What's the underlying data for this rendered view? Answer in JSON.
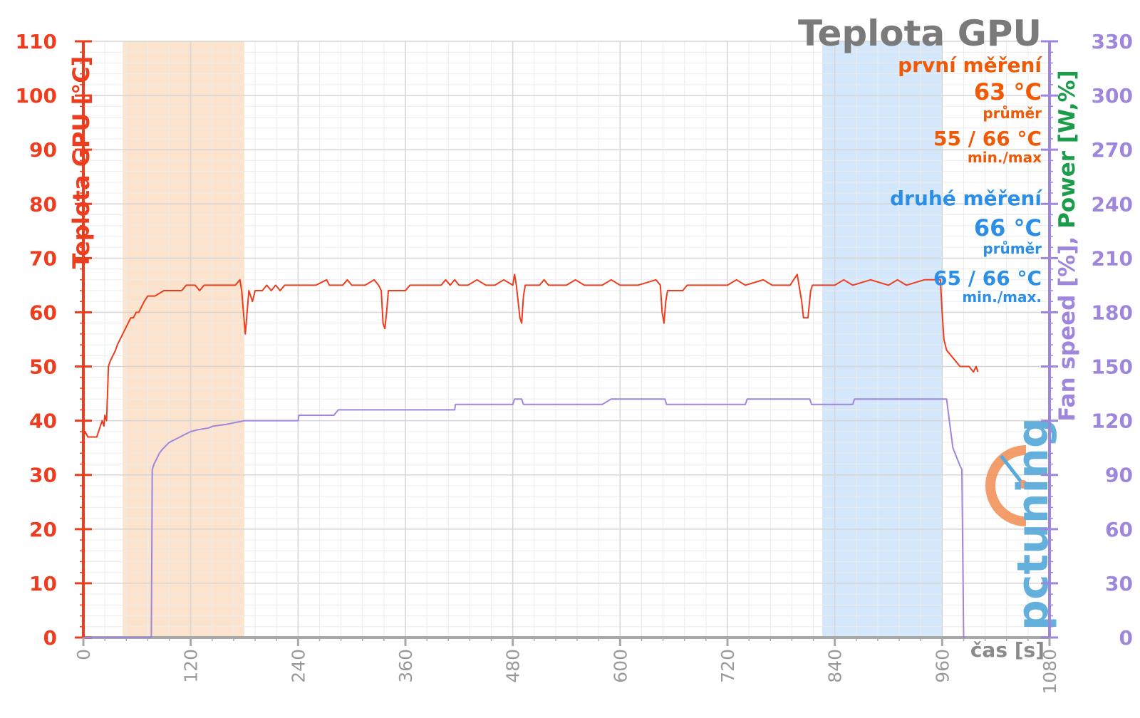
{
  "chart_data": {
    "type": "line",
    "title": "Teplota GPU",
    "xlabel": "čas [s]",
    "ylabel": "Teplota GPU [°C]",
    "ylabel_right_parts": [
      "Fan speed [%]",
      ", ",
      "Power [W,%]"
    ],
    "xlim": [
      0,
      1080
    ],
    "ylim": [
      0,
      110
    ],
    "ylim_right": [
      0,
      330
    ],
    "x_ticks": [
      0,
      120,
      240,
      360,
      480,
      600,
      720,
      840,
      960,
      1080
    ],
    "y_ticks": [
      0,
      10,
      20,
      30,
      40,
      50,
      60,
      70,
      80,
      90,
      100,
      110
    ],
    "y_right_ticks": [
      0,
      30,
      60,
      90,
      120,
      150,
      180,
      210,
      240,
      270,
      300,
      330
    ],
    "grid": true,
    "bands": [
      {
        "x0": 44,
        "x1": 180,
        "color": "#fbe3cd"
      },
      {
        "x0": 826,
        "x1": 960,
        "color": "#d4e7fb"
      }
    ],
    "series": [
      {
        "axis": "left",
        "color": "#ee3d1e",
        "points": [
          [
            0,
            37
          ],
          [
            2,
            38
          ],
          [
            5,
            37
          ],
          [
            15,
            37
          ],
          [
            17,
            38
          ],
          [
            19,
            39
          ],
          [
            21,
            40
          ],
          [
            23,
            39
          ],
          [
            24,
            41
          ],
          [
            26,
            40
          ],
          [
            27,
            45
          ],
          [
            28,
            50
          ],
          [
            30,
            51
          ],
          [
            33,
            52
          ],
          [
            36,
            53
          ],
          [
            38,
            54
          ],
          [
            41,
            55
          ],
          [
            44,
            56
          ],
          [
            47,
            57
          ],
          [
            50,
            58
          ],
          [
            53,
            59
          ],
          [
            56,
            59
          ],
          [
            59,
            60
          ],
          [
            62,
            60
          ],
          [
            65,
            61
          ],
          [
            68,
            62
          ],
          [
            72,
            63
          ],
          [
            80,
            63
          ],
          [
            90,
            64
          ],
          [
            100,
            64
          ],
          [
            110,
            64
          ],
          [
            115,
            65
          ],
          [
            125,
            65
          ],
          [
            130,
            64
          ],
          [
            135,
            65
          ],
          [
            145,
            65
          ],
          [
            160,
            65
          ],
          [
            170,
            65
          ],
          [
            175,
            66
          ],
          [
            177,
            64
          ],
          [
            179,
            60
          ],
          [
            181,
            56
          ],
          [
            183,
            60
          ],
          [
            185,
            64
          ],
          [
            187,
            63
          ],
          [
            189,
            62
          ],
          [
            192,
            64
          ],
          [
            200,
            64
          ],
          [
            205,
            65
          ],
          [
            210,
            64
          ],
          [
            215,
            65
          ],
          [
            220,
            64
          ],
          [
            225,
            65
          ],
          [
            240,
            65
          ],
          [
            260,
            65
          ],
          [
            272,
            66
          ],
          [
            275,
            65
          ],
          [
            290,
            65
          ],
          [
            295,
            66
          ],
          [
            300,
            65
          ],
          [
            315,
            65
          ],
          [
            325,
            66
          ],
          [
            330,
            65
          ],
          [
            333,
            64
          ],
          [
            335,
            58
          ],
          [
            337,
            57
          ],
          [
            339,
            60
          ],
          [
            341,
            64
          ],
          [
            345,
            64
          ],
          [
            360,
            64
          ],
          [
            365,
            65
          ],
          [
            380,
            65
          ],
          [
            400,
            65
          ],
          [
            405,
            66
          ],
          [
            410,
            65
          ],
          [
            415,
            66
          ],
          [
            420,
            65
          ],
          [
            430,
            65
          ],
          [
            440,
            66
          ],
          [
            450,
            65
          ],
          [
            460,
            65
          ],
          [
            470,
            66
          ],
          [
            480,
            65
          ],
          [
            482,
            67
          ],
          [
            484,
            65
          ],
          [
            486,
            62
          ],
          [
            488,
            59
          ],
          [
            490,
            58
          ],
          [
            492,
            63
          ],
          [
            494,
            65
          ],
          [
            500,
            65
          ],
          [
            510,
            65
          ],
          [
            515,
            66
          ],
          [
            520,
            65
          ],
          [
            540,
            65
          ],
          [
            550,
            66
          ],
          [
            560,
            65
          ],
          [
            580,
            65
          ],
          [
            590,
            66
          ],
          [
            600,
            65
          ],
          [
            620,
            65
          ],
          [
            640,
            66
          ],
          [
            645,
            65
          ],
          [
            647,
            60
          ],
          [
            649,
            58
          ],
          [
            651,
            62
          ],
          [
            653,
            64
          ],
          [
            660,
            64
          ],
          [
            670,
            64
          ],
          [
            675,
            65
          ],
          [
            700,
            65
          ],
          [
            720,
            65
          ],
          [
            730,
            66
          ],
          [
            740,
            65
          ],
          [
            760,
            66
          ],
          [
            770,
            65
          ],
          [
            790,
            65
          ],
          [
            798,
            67
          ],
          [
            800,
            65
          ],
          [
            803,
            62
          ],
          [
            805,
            59
          ],
          [
            810,
            59
          ],
          [
            813,
            64
          ],
          [
            815,
            65
          ],
          [
            840,
            65
          ],
          [
            850,
            66
          ],
          [
            860,
            65
          ],
          [
            880,
            66
          ],
          [
            900,
            65
          ],
          [
            910,
            66
          ],
          [
            920,
            65
          ],
          [
            940,
            66
          ],
          [
            955,
            66
          ],
          [
            958,
            66
          ],
          [
            960,
            60
          ],
          [
            962,
            55
          ],
          [
            965,
            53
          ],
          [
            970,
            52
          ],
          [
            975,
            51
          ],
          [
            980,
            50
          ],
          [
            990,
            50
          ],
          [
            995,
            49
          ],
          [
            998,
            50
          ],
          [
            1000,
            49
          ]
        ]
      },
      {
        "axis": "right",
        "color": "#9e86dd",
        "points": [
          [
            0,
            0
          ],
          [
            76,
            0
          ],
          [
            77,
            93
          ],
          [
            79,
            96
          ],
          [
            82,
            99
          ],
          [
            85,
            102
          ],
          [
            88,
            104
          ],
          [
            92,
            106
          ],
          [
            96,
            108
          ],
          [
            100,
            109
          ],
          [
            108,
            111
          ],
          [
            112,
            112
          ],
          [
            120,
            114
          ],
          [
            128,
            115
          ],
          [
            140,
            116
          ],
          [
            145,
            117
          ],
          [
            160,
            118
          ],
          [
            170,
            119
          ],
          [
            180,
            120
          ],
          [
            220,
            120
          ],
          [
            240,
            120
          ],
          [
            241,
            123
          ],
          [
            280,
            123
          ],
          [
            285,
            126
          ],
          [
            300,
            126
          ],
          [
            370,
            126
          ],
          [
            390,
            126
          ],
          [
            415,
            126
          ],
          [
            416,
            129
          ],
          [
            480,
            129
          ],
          [
            482,
            132
          ],
          [
            490,
            132
          ],
          [
            492,
            129
          ],
          [
            580,
            129
          ],
          [
            590,
            132
          ],
          [
            650,
            132
          ],
          [
            652,
            129
          ],
          [
            740,
            129
          ],
          [
            742,
            132
          ],
          [
            800,
            132
          ],
          [
            812,
            132
          ],
          [
            814,
            129
          ],
          [
            860,
            129
          ],
          [
            862,
            132
          ],
          [
            965,
            132
          ],
          [
            968,
            120
          ],
          [
            972,
            105
          ],
          [
            976,
            100
          ],
          [
            980,
            95
          ],
          [
            982,
            93
          ],
          [
            984,
            0
          ],
          [
            986,
            0
          ]
        ]
      }
    ],
    "annotations": {
      "first": {
        "label": "první měření",
        "value": "63 °C",
        "sub1": "průměr",
        "range": "55 / 66 °C",
        "sub2": "min./max"
      },
      "second": {
        "label": "druhé měření",
        "value": "66 °C",
        "sub1": "průměr",
        "range": "65 / 66 °C",
        "sub2": "min./max."
      }
    },
    "watermark": "pctuning"
  }
}
